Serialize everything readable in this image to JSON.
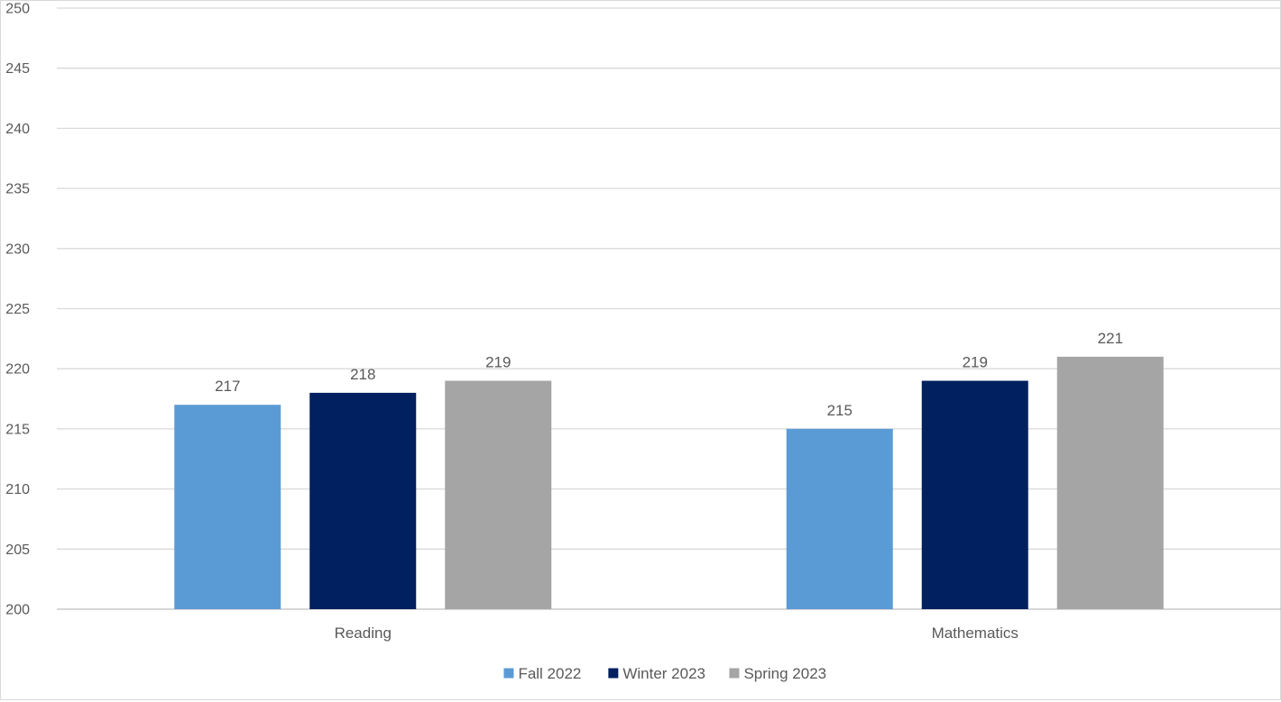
{
  "chart_data": {
    "type": "bar",
    "categories": [
      "Reading",
      "Mathematics"
    ],
    "series": [
      {
        "name": "Fall 2022",
        "color": "#5B9BD5",
        "values": [
          217,
          215
        ]
      },
      {
        "name": "Winter 2023",
        "color": "#002060",
        "values": [
          218,
          219
        ]
      },
      {
        "name": "Spring 2023",
        "color": "#A5A5A5",
        "values": [
          219,
          221
        ]
      }
    ],
    "ylim": [
      200,
      250
    ],
    "yticks": [
      200,
      205,
      210,
      215,
      220,
      225,
      230,
      235,
      240,
      245,
      250
    ],
    "grid": true,
    "legend": "bottom",
    "title": "",
    "xlabel": "",
    "ylabel": ""
  }
}
